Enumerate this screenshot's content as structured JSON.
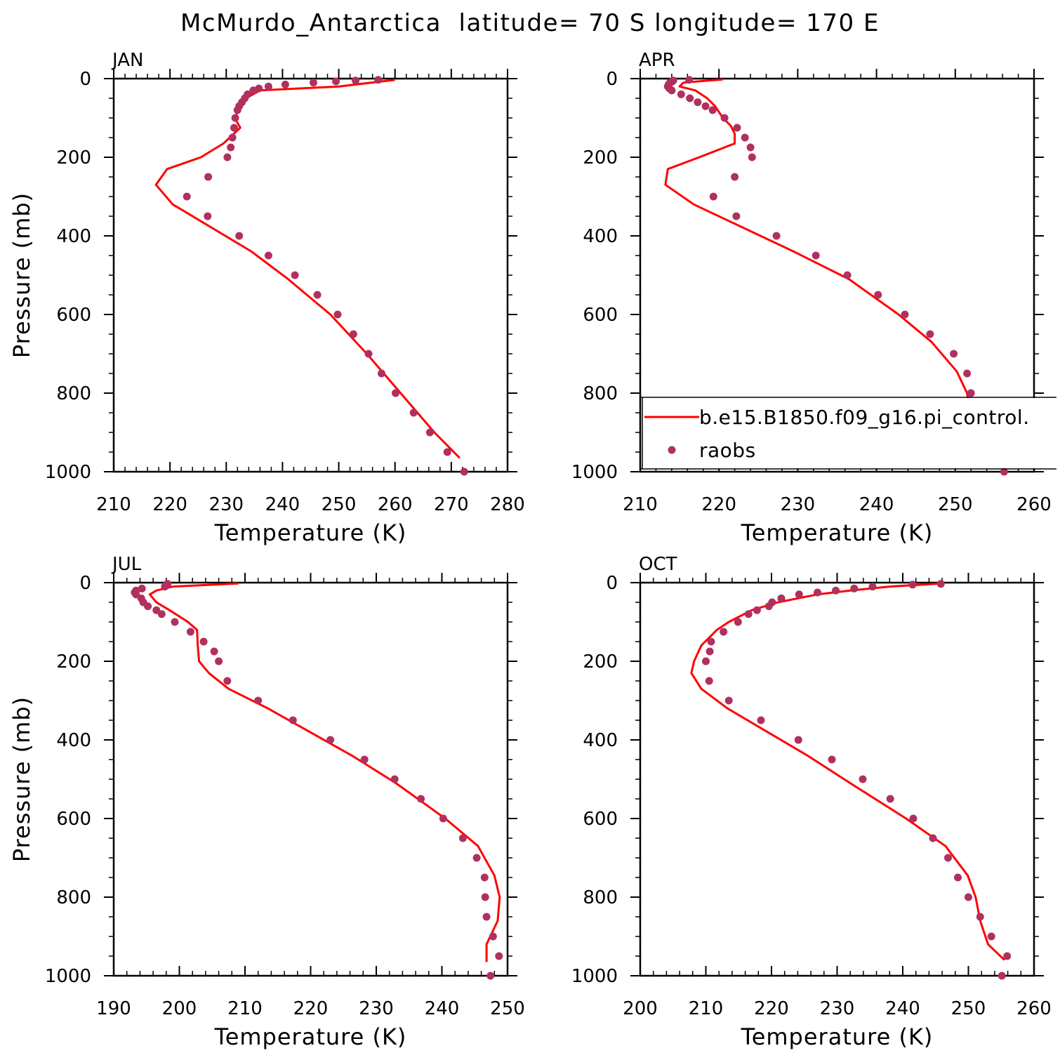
{
  "figure": {
    "title": "McMurdo_Antarctica  latitude= 70 S longitude= 170 E"
  },
  "legend": {
    "model_label": "b.e15.B1850.f09_g16.pi_control.",
    "obs_label": "raobs"
  },
  "colors": {
    "model_line": "#ff0000",
    "obs_marker": "#b03060"
  },
  "chart_data": [
    {
      "type": "line",
      "panel_label": "JAN",
      "xlabel": "Temperature (K)",
      "ylabel": "Pressure (mb)",
      "xlim": [
        210,
        280
      ],
      "ylim": [
        0,
        1000
      ],
      "y_reversed": true,
      "x_ticks": [
        "210",
        "220",
        "230",
        "240",
        "250",
        "260",
        "270",
        "280"
      ],
      "y_ticks": [
        "0",
        "200",
        "400",
        "600",
        "800",
        "1000"
      ],
      "legend": false,
      "model": {
        "p": [
          3,
          20,
          30,
          50,
          70,
          100,
          125,
          165,
          200,
          230,
          270,
          320,
          440,
          510,
          600,
          700,
          800,
          900,
          965
        ],
        "t": [
          260,
          250,
          236,
          233.5,
          232.5,
          231.5,
          232.5,
          229.5,
          225.5,
          219.5,
          217.5,
          220.5,
          234.5,
          241,
          248.5,
          255,
          261,
          267,
          271.5
        ]
      },
      "raobs": {
        "p": [
          3,
          5,
          7,
          10,
          15,
          20,
          25,
          30,
          40,
          50,
          60,
          70,
          80,
          100,
          125,
          150,
          175,
          200,
          250,
          300,
          350,
          400,
          450,
          500,
          550,
          600,
          650,
          700,
          750,
          800,
          850,
          900,
          950,
          1000
        ],
        "t": [
          257,
          253,
          249.5,
          245.5,
          240.5,
          237.5,
          235.8,
          234.8,
          233.8,
          233.3,
          232.8,
          232.3,
          232,
          231.6,
          231.4,
          231.1,
          230.8,
          230.2,
          226.8,
          223,
          226.7,
          232.3,
          237.5,
          242.2,
          246.2,
          249.8,
          252.6,
          255.3,
          257.6,
          260.1,
          263.3,
          266.2,
          269.3,
          272.3
        ]
      }
    },
    {
      "type": "line",
      "panel_label": "APR",
      "xlabel": "Temperature (K)",
      "ylabel": "",
      "xlim": [
        210,
        260
      ],
      "ylim": [
        0,
        1000
      ],
      "y_reversed": true,
      "x_ticks": [
        "210",
        "220",
        "230",
        "240",
        "250",
        "260"
      ],
      "y_ticks": [
        "0",
        "200",
        "400",
        "600",
        "800",
        "1000"
      ],
      "legend": true,
      "model": {
        "p": [
          2,
          10,
          20,
          30,
          50,
          70,
          100,
          120,
          140,
          165,
          200,
          230,
          270,
          320,
          440,
          510,
          600,
          670,
          745,
          800,
          860,
          920,
          965
        ],
        "t": [
          220.5,
          215.5,
          215,
          217,
          218.5,
          219.5,
          220.5,
          221.5,
          222,
          222,
          217.5,
          213.5,
          213.2,
          216.8,
          229.5,
          236.5,
          242.8,
          247,
          250.2,
          251.5,
          252,
          251,
          251.5
        ]
      },
      "raobs": {
        "p": [
          3,
          5,
          8,
          10,
          15,
          20,
          25,
          30,
          40,
          50,
          60,
          70,
          80,
          100,
          125,
          150,
          175,
          200,
          250,
          300,
          350,
          400,
          450,
          500,
          550,
          600,
          650,
          700,
          750,
          800,
          850,
          900,
          950,
          1000
        ],
        "t": [
          216.2,
          214.2,
          214,
          213.8,
          213.6,
          213.5,
          213.7,
          214,
          215.2,
          216.3,
          217.3,
          218.3,
          219.2,
          220.7,
          222.3,
          223.3,
          224,
          224.2,
          222,
          219.3,
          222.2,
          227.3,
          232.3,
          236.3,
          240.2,
          243.6,
          246.8,
          249.8,
          251.5,
          252,
          252.2,
          254,
          255.8,
          256.2
        ]
      }
    },
    {
      "type": "line",
      "panel_label": "JUL",
      "xlabel": "Temperature (K)",
      "ylabel": "Pressure (mb)",
      "xlim": [
        190,
        250
      ],
      "ylim": [
        0,
        1000
      ],
      "y_reversed": true,
      "x_ticks": [
        "190",
        "200",
        "210",
        "220",
        "230",
        "240",
        "250"
      ],
      "y_ticks": [
        "0",
        "200",
        "400",
        "600",
        "800",
        "1000"
      ],
      "legend": false,
      "model": {
        "p": [
          2,
          10,
          20,
          30,
          50,
          70,
          100,
          120,
          160,
          200,
          230,
          270,
          320,
          440,
          510,
          600,
          670,
          745,
          800,
          860,
          920,
          965
        ],
        "t": [
          209,
          199,
          196.5,
          195.5,
          196.5,
          198.5,
          201.3,
          202.7,
          202.8,
          203,
          204.5,
          207.5,
          213.5,
          226.3,
          233,
          240.5,
          245.5,
          248,
          248.8,
          248.5,
          246.8,
          246.8
        ]
      },
      "raobs": {
        "p": [
          3,
          5,
          10,
          15,
          20,
          25,
          30,
          40,
          50,
          60,
          70,
          80,
          100,
          125,
          150,
          175,
          200,
          250,
          300,
          350,
          400,
          450,
          500,
          550,
          600,
          650,
          700,
          750,
          800,
          850,
          900,
          950,
          1000
        ],
        "t": [
          198.2,
          198,
          197.8,
          194.3,
          193.4,
          193.2,
          193.4,
          194.2,
          194.5,
          195.2,
          196.5,
          197.3,
          199.3,
          201.7,
          203.7,
          205.3,
          206,
          207.3,
          212,
          217.3,
          223,
          228.2,
          232.8,
          236.8,
          240.2,
          243.2,
          245.3,
          246.5,
          246.6,
          246.8,
          247.8,
          248.7,
          247.4
        ]
      }
    },
    {
      "type": "line",
      "panel_label": "OCT",
      "xlabel": "Temperature (K)",
      "ylabel": "",
      "xlim": [
        200,
        260
      ],
      "ylim": [
        0,
        1000
      ],
      "y_reversed": true,
      "x_ticks": [
        "200",
        "210",
        "220",
        "230",
        "240",
        "250",
        "260"
      ],
      "y_ticks": [
        "0",
        "200",
        "400",
        "600",
        "800",
        "1000"
      ],
      "legend": false,
      "model": {
        "p": [
          2,
          10,
          20,
          30,
          50,
          70,
          100,
          120,
          160,
          200,
          230,
          270,
          320,
          440,
          510,
          600,
          670,
          745,
          800,
          860,
          920,
          960
        ],
        "t": [
          246,
          238,
          232,
          227,
          221,
          217,
          213.5,
          211.7,
          209.3,
          208.2,
          207.8,
          209.3,
          213.3,
          225.5,
          232,
          240.5,
          246.5,
          249.9,
          251.1,
          251.8,
          253,
          255.5
        ]
      },
      "raobs": {
        "p": [
          3,
          5,
          10,
          15,
          20,
          25,
          30,
          40,
          50,
          60,
          70,
          80,
          100,
          125,
          150,
          175,
          200,
          250,
          300,
          350,
          400,
          450,
          500,
          550,
          600,
          650,
          700,
          750,
          800,
          850,
          900,
          950,
          1000
        ],
        "t": [
          245.8,
          241.5,
          235.4,
          232.6,
          229.8,
          227,
          224.2,
          221.5,
          220.1,
          219.6,
          217.8,
          216.5,
          214.9,
          212.7,
          210.8,
          210.6,
          210,
          210.5,
          213.5,
          218.4,
          224.1,
          229.2,
          233.9,
          238.1,
          241.6,
          244.6,
          246.9,
          248.4,
          250,
          251.8,
          253.5,
          255.9,
          255.1
        ]
      }
    }
  ]
}
